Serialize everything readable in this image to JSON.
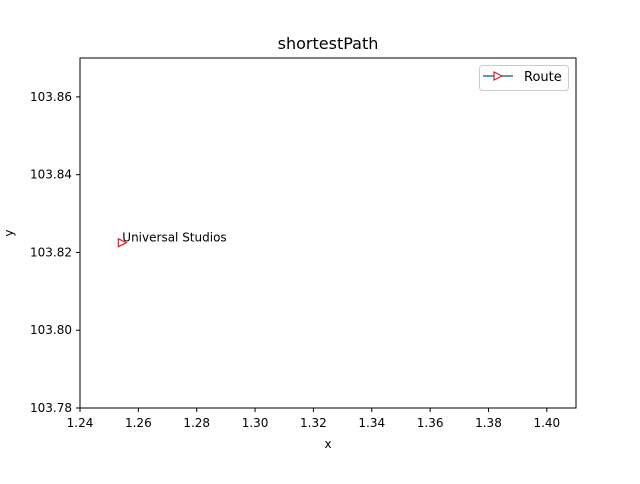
{
  "chart_data": {
    "type": "line",
    "title": "shortestPath",
    "xlabel": "x",
    "ylabel": "y",
    "xlim": [
      1.24,
      1.41
    ],
    "ylim": [
      103.78,
      103.87
    ],
    "xticks": [
      "1.24",
      "1.26",
      "1.28",
      "1.30",
      "1.32",
      "1.34",
      "1.36",
      "1.38",
      "1.40"
    ],
    "yticks": [
      "103.78",
      "103.80",
      "103.82",
      "103.84",
      "103.86"
    ],
    "grid": false,
    "legend_position": "top-right",
    "series": [
      {
        "name": "Route",
        "line_color": "#1f77b4",
        "marker": "triangle-right",
        "marker_color": "#d62728",
        "points": [
          {
            "x": 1.2545,
            "y": 103.8225
          }
        ]
      }
    ],
    "annotations": [
      {
        "text": "Universal Studios",
        "x": 1.2545,
        "y": 103.8225
      }
    ]
  }
}
